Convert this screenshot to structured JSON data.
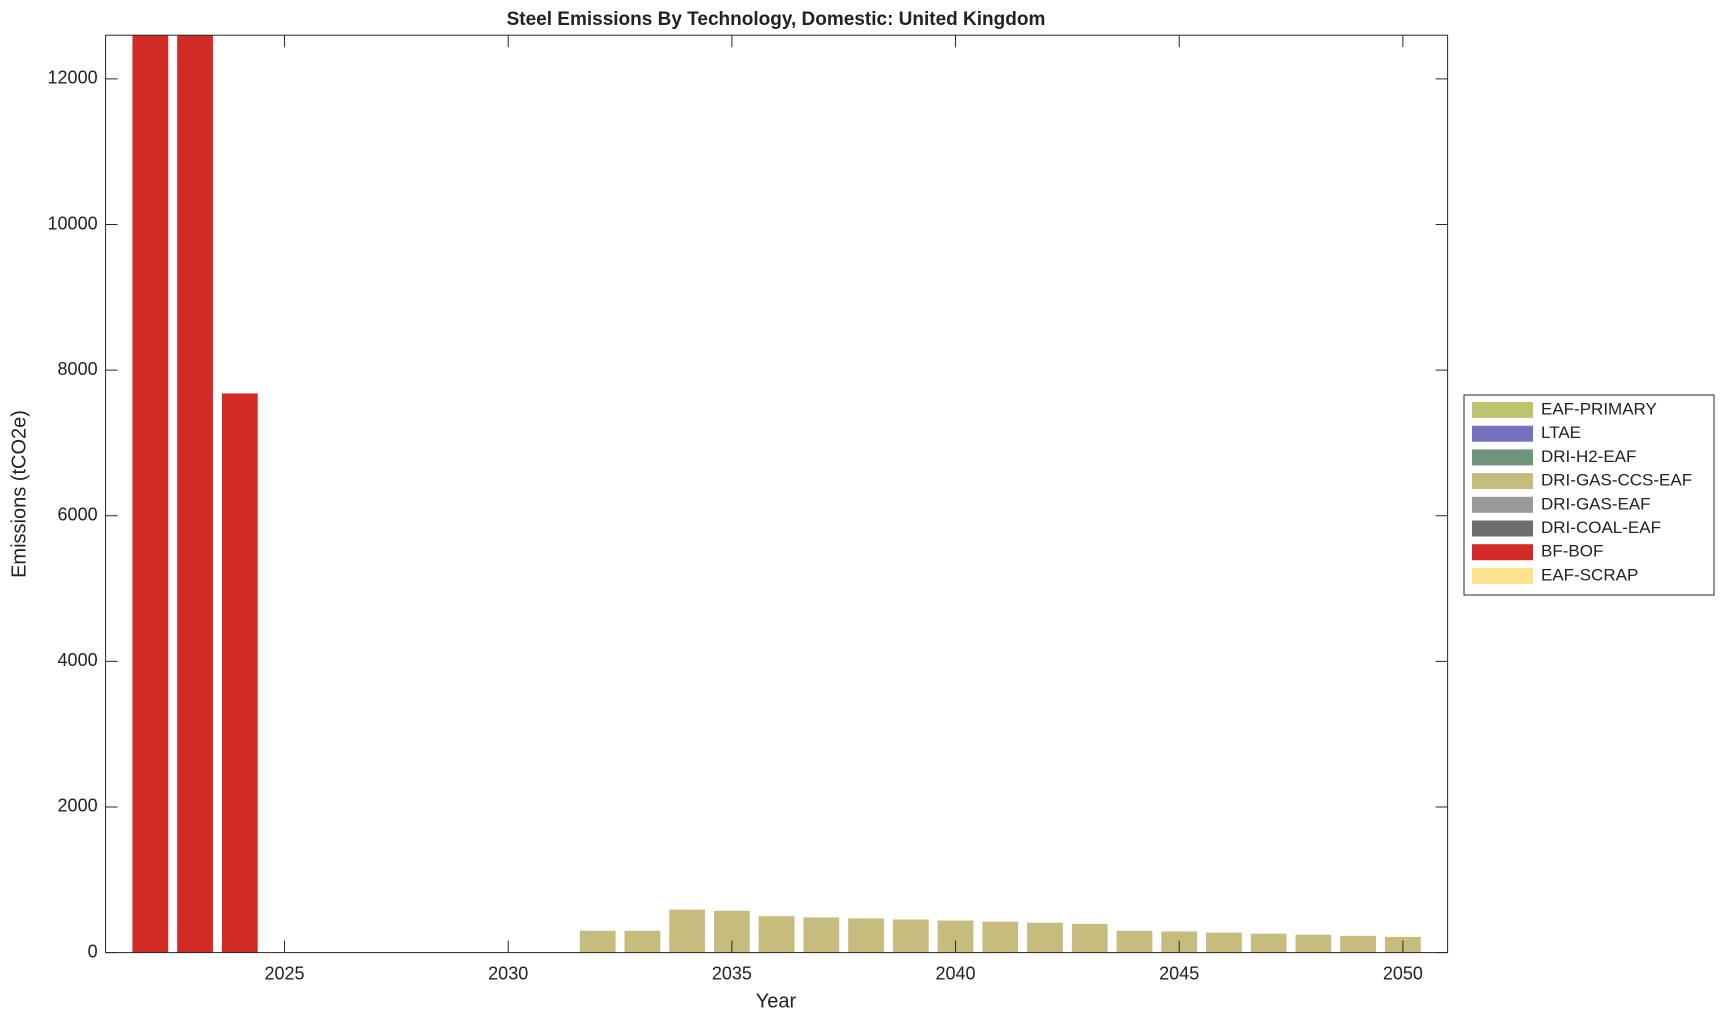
{
  "chart_data": {
    "type": "stacked_bar",
    "title": "Steel Emissions By Technology, Domestic: United Kingdom",
    "x_label": "Year",
    "y_label": "Emissions (tCO2e)",
    "x": [
      2022,
      2023,
      2024,
      2025,
      2026,
      2027,
      2028,
      2029,
      2030,
      2031,
      2032,
      2033,
      2034,
      2035,
      2036,
      2037,
      2038,
      2039,
      2040,
      2041,
      2042,
      2043,
      2044,
      2045,
      2046,
      2047,
      2048,
      2049,
      2050
    ],
    "xlim": [
      2021,
      2051
    ],
    "xticks": [
      2025,
      2030,
      2035,
      2040,
      2045,
      2050
    ],
    "ylim": [
      0,
      12600
    ],
    "yticks": [
      0,
      2000,
      4000,
      6000,
      8000,
      10000,
      12000
    ],
    "legend": "outside-right",
    "series": [
      {
        "name": "EAF-PRIMARY",
        "color": "#bcc46c",
        "values": [
          0,
          0,
          0,
          0,
          0,
          0,
          0,
          0,
          0,
          0,
          0,
          0,
          0,
          0,
          0,
          0,
          0,
          0,
          0,
          0,
          0,
          0,
          0,
          0,
          0,
          0,
          0,
          0,
          0
        ]
      },
      {
        "name": "LTAE",
        "color": "#7570bf",
        "values": [
          0,
          0,
          0,
          0,
          0,
          0,
          0,
          0,
          0,
          0,
          0,
          0,
          0,
          0,
          0,
          0,
          0,
          0,
          0,
          0,
          0,
          0,
          0,
          0,
          0,
          0,
          0,
          0,
          0
        ]
      },
      {
        "name": "DRI-H2-EAF",
        "color": "#6f9479",
        "values": [
          0,
          0,
          0,
          0,
          0,
          0,
          0,
          0,
          0,
          0,
          0,
          0,
          0,
          0,
          0,
          0,
          0,
          0,
          0,
          0,
          0,
          0,
          0,
          0,
          0,
          0,
          0,
          0,
          0
        ]
      },
      {
        "name": "DRI-GAS-CCS-EAF",
        "color": "#c6bc7e",
        "values": [
          0,
          0,
          0,
          0,
          0,
          0,
          0,
          0,
          0,
          0,
          300,
          300,
          590,
          575,
          500,
          483,
          470,
          455,
          440,
          425,
          410,
          395,
          300,
          290,
          275,
          260,
          245,
          230,
          215
        ]
      },
      {
        "name": "DRI-GAS-EAF",
        "color": "#999999",
        "values": [
          0,
          0,
          0,
          0,
          0,
          0,
          0,
          0,
          0,
          0,
          0,
          0,
          0,
          0,
          0,
          0,
          0,
          0,
          0,
          0,
          0,
          0,
          0,
          0,
          0,
          0,
          0,
          0,
          0
        ]
      },
      {
        "name": "DRI-COAL-EAF",
        "color": "#6e6e6e",
        "values": [
          0,
          0,
          0,
          0,
          0,
          0,
          0,
          0,
          0,
          0,
          0,
          0,
          0,
          0,
          0,
          0,
          0,
          0,
          0,
          0,
          0,
          0,
          0,
          0,
          0,
          0,
          0,
          0,
          0
        ]
      },
      {
        "name": "BF-BOF",
        "color": "#d22b26",
        "values": [
          12600,
          12600,
          7680,
          0,
          0,
          0,
          0,
          0,
          0,
          0,
          0,
          0,
          0,
          0,
          0,
          0,
          0,
          0,
          0,
          0,
          0,
          0,
          0,
          0,
          0,
          0,
          0,
          0,
          0
        ]
      },
      {
        "name": "EAF-SCRAP",
        "color": "#fde48c",
        "values": [
          0,
          0,
          0,
          0,
          0,
          0,
          0,
          0,
          0,
          0,
          0,
          0,
          0,
          0,
          0,
          0,
          0,
          0,
          0,
          0,
          0,
          0,
          0,
          0,
          0,
          0,
          0,
          0,
          0
        ]
      }
    ]
  }
}
